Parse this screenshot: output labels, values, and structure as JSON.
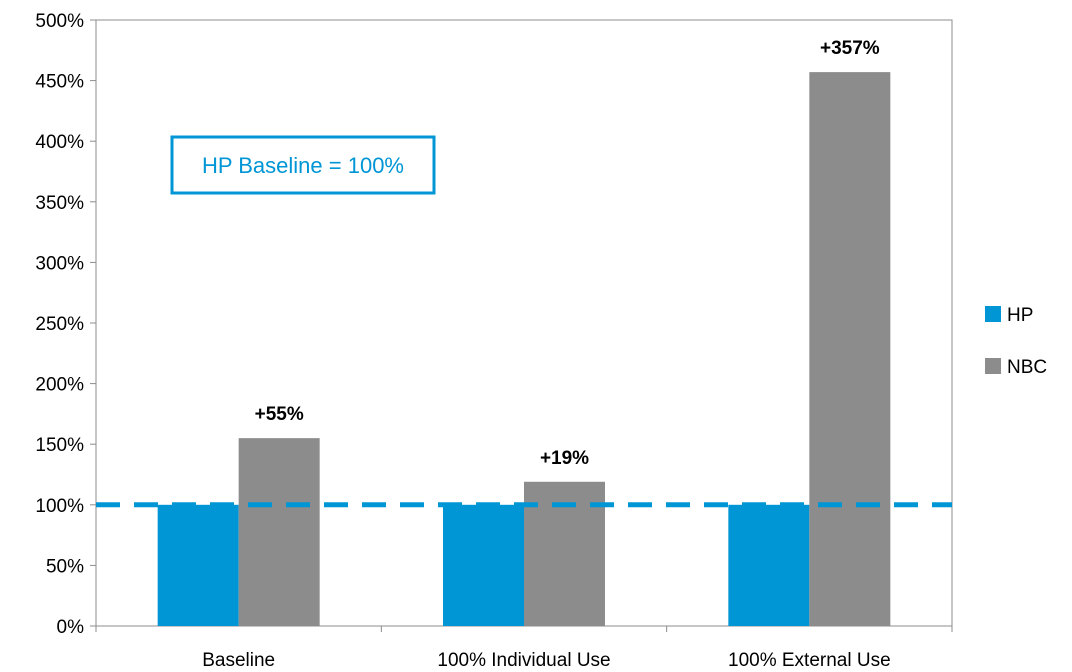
{
  "chart_data": {
    "type": "bar",
    "categories": [
      "Baseline",
      "100% Individual Use",
      "100% External Use"
    ],
    "series": [
      {
        "name": "HP",
        "values": [
          100,
          100,
          100
        ],
        "color": "#0096d6"
      },
      {
        "name": "NBC",
        "values": [
          155,
          119,
          457
        ],
        "color": "#8c8c8c"
      }
    ],
    "data_labels": [
      "+55%",
      "+19%",
      "+357%"
    ],
    "ylim": [
      0,
      500
    ],
    "yticks": [
      0,
      50,
      100,
      150,
      200,
      250,
      300,
      350,
      400,
      450,
      500
    ],
    "ytick_labels": [
      "0%",
      "50%",
      "100%",
      "150%",
      "200%",
      "250%",
      "300%",
      "350%",
      "400%",
      "450%",
      "500%"
    ],
    "reference_line": {
      "value": 100,
      "style": "dashed",
      "color": "#0096d6"
    },
    "annotation": "HP Baseline = 100%",
    "legend_position": "right",
    "grid": false,
    "title": "",
    "xlabel": "",
    "ylabel": ""
  }
}
